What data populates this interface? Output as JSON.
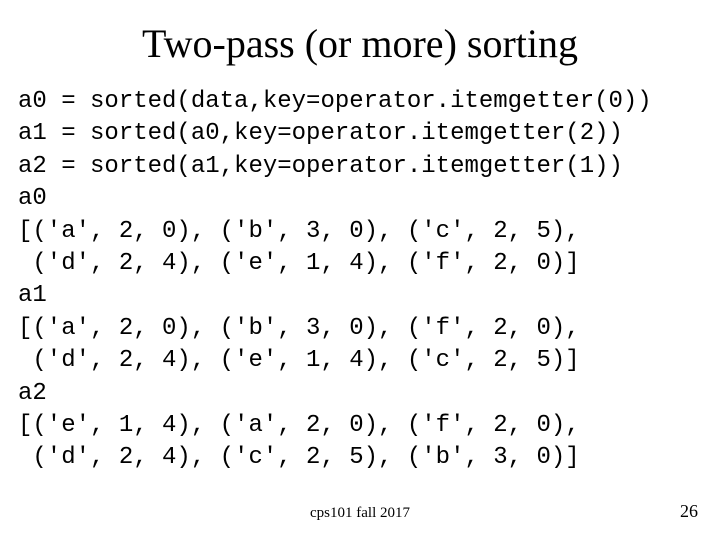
{
  "title": "Two-pass (or more) sorting",
  "code": "a0 = sorted(data,key=operator.itemgetter(0))\na1 = sorted(a0,key=operator.itemgetter(2))\na2 = sorted(a1,key=operator.itemgetter(1))\na0\n[('a', 2, 0), ('b', 3, 0), ('c', 2, 5),\n ('d', 2, 4), ('e', 1, 4), ('f', 2, 0)]\na1\n[('a', 2, 0), ('b', 3, 0), ('f', 2, 0),\n ('d', 2, 4), ('e', 1, 4), ('c', 2, 5)]\na2\n[('e', 1, 4), ('a', 2, 0), ('f', 2, 0),\n ('d', 2, 4), ('c', 2, 5), ('b', 3, 0)]",
  "footer": "cps101 fall 2017",
  "page_number": "26",
  "styling": {
    "background_color": "#ffffff",
    "text_color": "#000000",
    "title_font": "Times New Roman",
    "title_fontsize": 40,
    "code_font": "Courier New",
    "code_fontsize": 24,
    "footer_fontsize": 15,
    "page_fontsize": 18,
    "slide_width": 720,
    "slide_height": 540
  }
}
